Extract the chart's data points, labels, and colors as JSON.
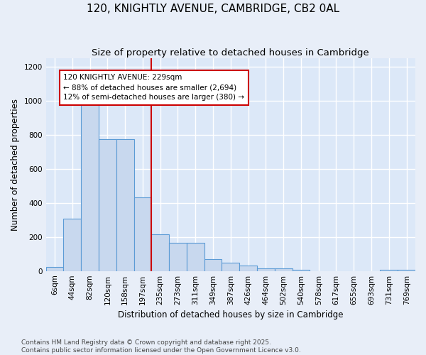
{
  "title": "120, KNIGHTLY AVENUE, CAMBRIDGE, CB2 0AL",
  "subtitle": "Size of property relative to detached houses in Cambridge",
  "xlabel": "Distribution of detached houses by size in Cambridge",
  "ylabel": "Number of detached properties",
  "categories": [
    "6sqm",
    "44sqm",
    "82sqm",
    "120sqm",
    "158sqm",
    "197sqm",
    "235sqm",
    "273sqm",
    "311sqm",
    "349sqm",
    "387sqm",
    "426sqm",
    "464sqm",
    "502sqm",
    "540sqm",
    "578sqm",
    "617sqm",
    "655sqm",
    "693sqm",
    "731sqm",
    "769sqm"
  ],
  "values": [
    25,
    305,
    985,
    775,
    775,
    430,
    215,
    165,
    165,
    70,
    47,
    32,
    15,
    15,
    9,
    0,
    0,
    0,
    0,
    8,
    8
  ],
  "bar_color": "#c8d8ee",
  "bar_edge_color": "#5b9bd5",
  "background_color": "#e8eef8",
  "plot_bg_color": "#dce8f8",
  "grid_color": "#ffffff",
  "vline_x_index": 6,
  "vline_color": "#cc0000",
  "annotation_text": "120 KNIGHTLY AVENUE: 229sqm\n← 88% of detached houses are smaller (2,694)\n12% of semi-detached houses are larger (380) →",
  "annotation_box_facecolor": "#ffffff",
  "annotation_box_edgecolor": "#cc0000",
  "ylim": [
    0,
    1250
  ],
  "yticks": [
    0,
    200,
    400,
    600,
    800,
    1000,
    1200
  ],
  "footer_line1": "Contains HM Land Registry data © Crown copyright and database right 2025.",
  "footer_line2": "Contains public sector information licensed under the Open Government Licence v3.0.",
  "title_fontsize": 11,
  "subtitle_fontsize": 9.5,
  "axis_label_fontsize": 8.5,
  "tick_fontsize": 7.5,
  "annotation_fontsize": 7.5,
  "footer_fontsize": 6.5
}
